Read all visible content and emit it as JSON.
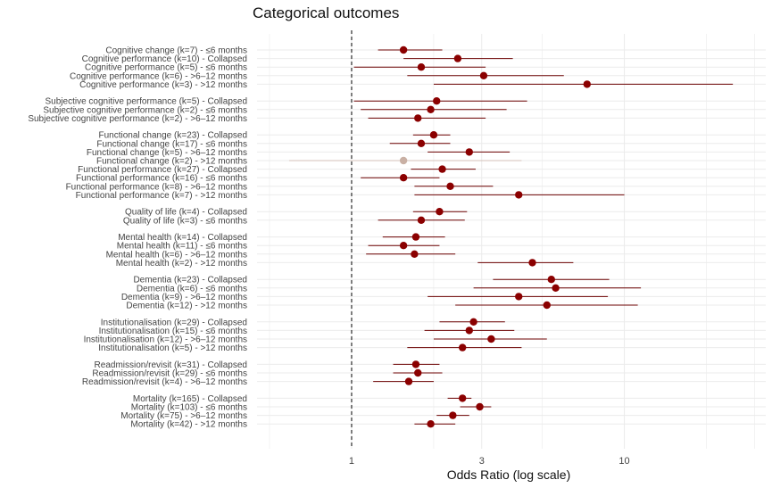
{
  "chart_data": {
    "type": "forest",
    "title": "Categorical outcomes",
    "xlabel": "Odds Ratio (log scale)",
    "xscale": "log",
    "xlim": [
      0.45,
      33
    ],
    "xticks": [
      1,
      3,
      10
    ],
    "xtick_labels": [
      "1",
      "3",
      "10"
    ],
    "reference_line": 1,
    "grid": true,
    "colors": {
      "point": "#8b0000",
      "ci": "#6b0000",
      "point_muted": "#c9b0a4",
      "ci_muted": "#d4c2b9",
      "grid": "#ebebeb",
      "ref_line": "#000000"
    },
    "groups": [
      {
        "rows": [
          {
            "label": "Cognitive change (k=7) - ≤6 months",
            "or": 1.55,
            "lo": 1.25,
            "hi": 2.15
          },
          {
            "label": "Cognitive performance (k=10) - Collapsed",
            "or": 2.45,
            "lo": 1.55,
            "hi": 3.9
          },
          {
            "label": "Cognitive performance (k=5) - ≤6 months",
            "or": 1.8,
            "lo": 1.02,
            "hi": 3.1
          },
          {
            "label": "Cognitive performance (k=6) - >6–12 months",
            "or": 3.05,
            "lo": 1.6,
            "hi": 6.0
          },
          {
            "label": "Cognitive performance (k=3) - >12 months",
            "or": 7.3,
            "lo": 2.0,
            "hi": 25.0
          }
        ]
      },
      {
        "rows": [
          {
            "label": "Subjective cognitive performance (k=5) - Collapsed",
            "or": 2.05,
            "lo": 1.02,
            "hi": 4.4
          },
          {
            "label": "Subjective cognitive performance (k=2) - ≤6 months",
            "or": 1.95,
            "lo": 1.08,
            "hi": 3.7
          },
          {
            "label": "Subjective cognitive performance (k=2) - >6–12 months",
            "or": 1.75,
            "lo": 1.15,
            "hi": 3.1
          }
        ]
      },
      {
        "rows": [
          {
            "label": "Functional change (k=23) - Collapsed",
            "or": 2.0,
            "lo": 1.68,
            "hi": 2.3
          },
          {
            "label": "Functional change (k=17) - ≤6 months",
            "or": 1.8,
            "lo": 1.38,
            "hi": 2.3
          },
          {
            "label": "Functional change (k=5) - >6–12 months",
            "or": 2.7,
            "lo": 1.9,
            "hi": 3.8
          },
          {
            "label": "Functional change (k=2) - >12 months",
            "or": 1.55,
            "lo": 0.59,
            "hi": 4.2,
            "muted": true
          },
          {
            "label": "Functional performance (k=27) - Collapsed",
            "or": 2.15,
            "lo": 1.65,
            "hi": 2.85
          },
          {
            "label": "Functional performance (k=16) - ≤6 months",
            "or": 1.55,
            "lo": 1.08,
            "hi": 2.1
          },
          {
            "label": "Functional performance (k=8) - >6–12 months",
            "or": 2.3,
            "lo": 1.7,
            "hi": 3.3
          },
          {
            "label": "Functional performance (k=7) - >12 months",
            "or": 4.1,
            "lo": 1.7,
            "hi": 10.0
          }
        ]
      },
      {
        "rows": [
          {
            "label": "Quality of life (k=4) - Collapsed",
            "or": 2.1,
            "lo": 1.68,
            "hi": 2.65
          },
          {
            "label": "Quality of life (k=3) - ≤6 months",
            "or": 1.8,
            "lo": 1.25,
            "hi": 2.6
          }
        ]
      },
      {
        "rows": [
          {
            "label": "Mental health (k=14) - Collapsed",
            "or": 1.72,
            "lo": 1.3,
            "hi": 2.2
          },
          {
            "label": "Mental health (k=11) - ≤6 months",
            "or": 1.55,
            "lo": 1.15,
            "hi": 2.1
          },
          {
            "label": "Mental health (k=6) - >6–12 months",
            "or": 1.7,
            "lo": 1.13,
            "hi": 2.4
          },
          {
            "label": "Mental health (k=2) - >12 months",
            "or": 4.6,
            "lo": 2.9,
            "hi": 6.5
          }
        ]
      },
      {
        "rows": [
          {
            "label": "Dementia (k=23) - Collapsed",
            "or": 5.4,
            "lo": 3.3,
            "hi": 8.8
          },
          {
            "label": "Dementia (k=6) - ≤6 months",
            "or": 5.6,
            "lo": 2.8,
            "hi": 11.5
          },
          {
            "label": "Dementia (k=9) - >6–12 months",
            "or": 4.1,
            "lo": 1.9,
            "hi": 8.7
          },
          {
            "label": "Dementia (k=12) - >12 months",
            "or": 5.2,
            "lo": 2.4,
            "hi": 11.2
          }
        ]
      },
      {
        "rows": [
          {
            "label": "Institutionalisation (k=29) - Collapsed",
            "or": 2.8,
            "lo": 2.1,
            "hi": 3.65
          },
          {
            "label": "Institutionalisation (k=15) - ≤6 months",
            "or": 2.7,
            "lo": 1.85,
            "hi": 3.95
          },
          {
            "label": "Institutionalisation (k=12) - >6–12 months",
            "or": 3.25,
            "lo": 2.0,
            "hi": 5.2
          },
          {
            "label": "Institutionalisation (k=5) - >12 months",
            "or": 2.55,
            "lo": 1.6,
            "hi": 4.2
          }
        ]
      },
      {
        "rows": [
          {
            "label": "Readmission/revisit (k=31) - Collapsed",
            "or": 1.72,
            "lo": 1.42,
            "hi": 2.1
          },
          {
            "label": "Readmission/revisit (k=29) - ≤6 months",
            "or": 1.75,
            "lo": 1.42,
            "hi": 2.15
          },
          {
            "label": "Readmission/revisit (k=4) - >6–12 months",
            "or": 1.62,
            "lo": 1.2,
            "hi": 2.0
          }
        ]
      },
      {
        "rows": [
          {
            "label": "Mortality (k=165) - Collapsed",
            "or": 2.55,
            "lo": 2.25,
            "hi": 2.75
          },
          {
            "label": "Mortality (k=103) - ≤6 months",
            "or": 2.95,
            "lo": 2.5,
            "hi": 3.25
          },
          {
            "label": "Mortality (k=75) - >6–12 months",
            "or": 2.35,
            "lo": 2.05,
            "hi": 2.7
          },
          {
            "label": "Mortality (k=42) - >12 months",
            "or": 1.95,
            "lo": 1.7,
            "hi": 2.4
          }
        ]
      }
    ]
  }
}
